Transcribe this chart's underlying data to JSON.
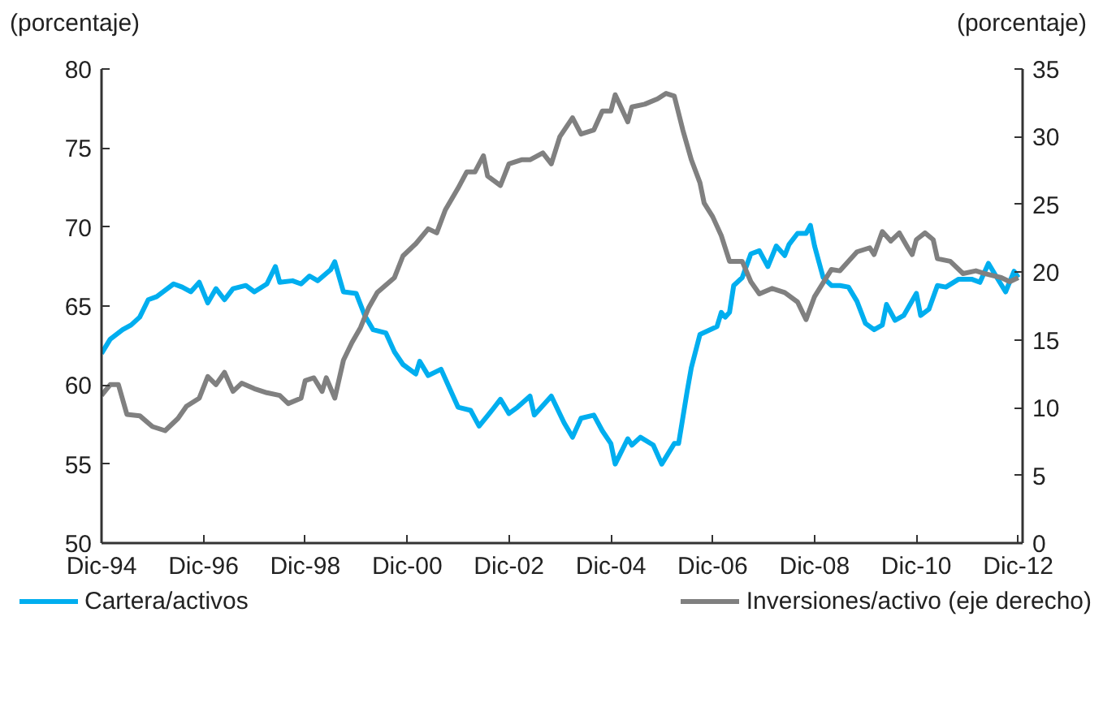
{
  "chart_data": {
    "type": "line",
    "ylabel": "(porcentaje)",
    "y2label": "(porcentaje)",
    "legend": "bottom",
    "line_style": "solid",
    "xlim": [
      "1994-12",
      "2013-01"
    ],
    "xticks": [
      {
        "value": "1994-12",
        "label": "Dic-94"
      },
      {
        "value": "1996-12",
        "label": "Dic-96"
      },
      {
        "value": "1998-12",
        "label": "Dic-98"
      },
      {
        "value": "2000-12",
        "label": "Dic-00"
      },
      {
        "value": "2002-12",
        "label": "Dic-02"
      },
      {
        "value": "2004-12",
        "label": "Dic-04"
      },
      {
        "value": "2006-12",
        "label": "Dic-06"
      },
      {
        "value": "2008-12",
        "label": "Dic-08"
      },
      {
        "value": "2010-12",
        "label": "Dic-10"
      },
      {
        "value": "2012-12",
        "label": "Dic-12"
      }
    ],
    "ylim": [
      50,
      80
    ],
    "yticks": [
      50,
      55,
      60,
      65,
      70,
      75,
      80
    ],
    "y2lim": [
      0,
      35
    ],
    "y2ticks": [
      0,
      5,
      10,
      15,
      20,
      25,
      30,
      35
    ],
    "series": [
      {
        "name": "Cartera/activos",
        "color": "#00aeef",
        "x": [
          "1994-12",
          "1995-02",
          "1995-05",
          "1995-07",
          "1995-09",
          "1995-11",
          "1996-01",
          "1996-03",
          "1996-05",
          "1996-07",
          "1996-09",
          "1996-11",
          "1997-01",
          "1997-03",
          "1997-05",
          "1997-07",
          "1997-10",
          "1997-12",
          "1998-03",
          "1998-05",
          "1998-06",
          "1998-09",
          "1998-11",
          "1999-01",
          "1999-03",
          "1999-06",
          "1999-07",
          "1999-09",
          "1999-12",
          "2000-02",
          "2000-04",
          "2000-07",
          "2000-09",
          "2000-11",
          "2001-02",
          "2001-03",
          "2001-05",
          "2001-08",
          "2001-10",
          "2001-12",
          "2002-03",
          "2002-05",
          "2002-08",
          "2002-10",
          "2002-12",
          "2003-02",
          "2003-05",
          "2003-06",
          "2003-10",
          "2004-01",
          "2004-03",
          "2004-05",
          "2004-08",
          "2004-10",
          "2004-12",
          "2005-01",
          "2005-04",
          "2005-05",
          "2005-07",
          "2005-10",
          "2005-12",
          "2006-03",
          "2006-04",
          "2006-06",
          "2006-07",
          "2006-09",
          "2007-01",
          "2007-02",
          "2007-03",
          "2007-04",
          "2007-05",
          "2007-07",
          "2007-09",
          "2007-11",
          "2008-01",
          "2008-03",
          "2008-05",
          "2008-06",
          "2008-08",
          "2008-10",
          "2008-11",
          "2008-12",
          "2009-02",
          "2009-04",
          "2009-06",
          "2009-08",
          "2009-10",
          "2009-12",
          "2010-02",
          "2010-04",
          "2010-05",
          "2010-07",
          "2010-09",
          "2010-12",
          "2011-01",
          "2011-03",
          "2011-05",
          "2011-07",
          "2011-10",
          "2012-01",
          "2012-03",
          "2012-05",
          "2012-07",
          "2012-09",
          "2012-11",
          "2012-12"
        ],
        "values": [
          62.0,
          62.9,
          63.5,
          63.8,
          64.3,
          65.4,
          65.6,
          66.0,
          66.4,
          66.2,
          65.9,
          66.5,
          65.2,
          66.1,
          65.4,
          66.1,
          66.3,
          65.9,
          66.4,
          67.5,
          66.5,
          66.6,
          66.4,
          66.9,
          66.6,
          67.3,
          67.8,
          65.9,
          65.8,
          64.4,
          63.5,
          63.3,
          62.1,
          61.3,
          60.7,
          61.5,
          60.6,
          61.0,
          59.8,
          58.6,
          58.4,
          57.4,
          58.4,
          59.1,
          58.2,
          58.6,
          59.3,
          58.1,
          59.3,
          57.6,
          56.7,
          57.9,
          58.1,
          57.1,
          56.3,
          55.0,
          56.6,
          56.2,
          56.7,
          56.2,
          55.0,
          56.3,
          56.3,
          59.6,
          61.1,
          63.2,
          63.7,
          64.6,
          64.3,
          64.6,
          66.3,
          66.8,
          68.3,
          68.5,
          67.5,
          68.8,
          68.2,
          68.9,
          69.6,
          69.6,
          70.1,
          68.8,
          66.8,
          66.3,
          66.3,
          66.2,
          65.3,
          63.9,
          63.5,
          63.8,
          65.1,
          64.1,
          64.4,
          65.8,
          64.4,
          64.8,
          66.3,
          66.2,
          66.7,
          66.7,
          66.5,
          67.7,
          66.8,
          65.9,
          67.2,
          66.8
        ]
      },
      {
        "name": "Inversiones/activo (eje derecho)",
        "color": "#808080",
        "axis": "y2",
        "x": [
          "1994-12",
          "1995-02",
          "1995-04",
          "1995-06",
          "1995-09",
          "1995-12",
          "1996-03",
          "1996-06",
          "1996-08",
          "1996-11",
          "1997-01",
          "1997-03",
          "1997-05",
          "1997-07",
          "1997-09",
          "1997-12",
          "1998-03",
          "1998-06",
          "1998-08",
          "1998-11",
          "1998-12",
          "1999-02",
          "1999-04",
          "1999-05",
          "1999-07",
          "1999-09",
          "1999-11",
          "2000-01",
          "2000-03",
          "2000-05",
          "2000-09",
          "2000-11",
          "2001-02",
          "2001-05",
          "2001-07",
          "2001-09",
          "2001-12",
          "2002-02",
          "2002-04",
          "2002-06",
          "2002-07",
          "2002-10",
          "2002-12",
          "2003-03",
          "2003-05",
          "2003-08",
          "2003-10",
          "2003-12",
          "2004-03",
          "2004-05",
          "2004-08",
          "2004-10",
          "2004-12",
          "2005-01",
          "2005-04",
          "2005-05",
          "2005-08",
          "2005-11",
          "2006-01",
          "2006-03",
          "2006-05",
          "2006-07",
          "2006-09",
          "2006-10",
          "2006-12",
          "2007-02",
          "2007-04",
          "2007-07",
          "2007-09",
          "2007-11",
          "2008-02",
          "2008-05",
          "2008-08",
          "2008-10",
          "2008-12",
          "2009-04",
          "2009-06",
          "2009-10",
          "2010-01",
          "2010-02",
          "2010-04",
          "2010-06",
          "2010-08",
          "2010-10",
          "2010-11",
          "2010-12",
          "2011-02",
          "2011-04",
          "2011-05",
          "2011-08",
          "2011-11",
          "2012-02",
          "2012-04",
          "2012-08",
          "2012-10",
          "2012-12"
        ],
        "values": [
          10.9,
          11.7,
          11.7,
          9.5,
          9.4,
          8.6,
          8.3,
          9.2,
          10.1,
          10.7,
          12.3,
          11.7,
          12.6,
          11.2,
          11.8,
          11.4,
          11.1,
          10.9,
          10.3,
          10.7,
          12.0,
          12.2,
          11.2,
          12.2,
          10.7,
          13.5,
          14.8,
          15.9,
          17.4,
          18.5,
          19.6,
          21.2,
          22.1,
          23.2,
          22.9,
          24.6,
          26.2,
          27.4,
          27.4,
          28.6,
          27.1,
          26.4,
          28.0,
          28.3,
          28.3,
          28.8,
          28.0,
          30.0,
          31.4,
          30.2,
          30.5,
          31.9,
          31.9,
          33.1,
          31.1,
          32.2,
          32.4,
          32.8,
          33.2,
          33.0,
          30.5,
          28.3,
          26.6,
          25.1,
          24.1,
          22.7,
          20.8,
          20.8,
          19.3,
          18.4,
          18.8,
          18.5,
          17.8,
          16.5,
          18.2,
          20.2,
          20.1,
          21.5,
          21.8,
          21.3,
          23.0,
          22.3,
          22.9,
          21.8,
          21.3,
          22.4,
          22.9,
          22.4,
          21.0,
          20.8,
          19.9,
          20.1,
          19.9,
          19.6,
          19.3,
          19.6
        ]
      }
    ]
  }
}
